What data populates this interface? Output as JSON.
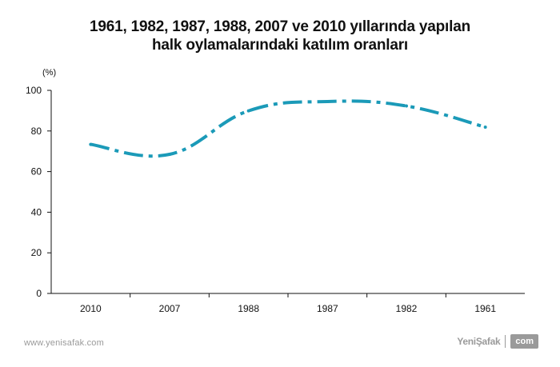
{
  "chart_data": {
    "type": "line",
    "title": [
      "1961, 1982, 1987, 1988, 2007 ve 2010 yıllarında yapılan",
      "halk oylamalarındaki katılım oranları"
    ],
    "ylabel": "(%)",
    "xlabel": "",
    "categories": [
      "2010",
      "2007",
      "1988",
      "1987",
      "1982",
      "1961"
    ],
    "series": [
      {
        "values": [
          73.4,
          68.5,
          89.9,
          94.5,
          92.3,
          81.9
        ],
        "color": "#1b9ab8",
        "style": "dash-dot"
      }
    ],
    "ylim": [
      0,
      100
    ],
    "yticks": [
      0,
      20,
      40,
      60,
      80,
      100
    ],
    "grid": false,
    "legend": "none"
  },
  "footer": {
    "url": "www.yenisafak.com",
    "logo_name": "YeniŞafak",
    "logo_suffix": "com"
  }
}
